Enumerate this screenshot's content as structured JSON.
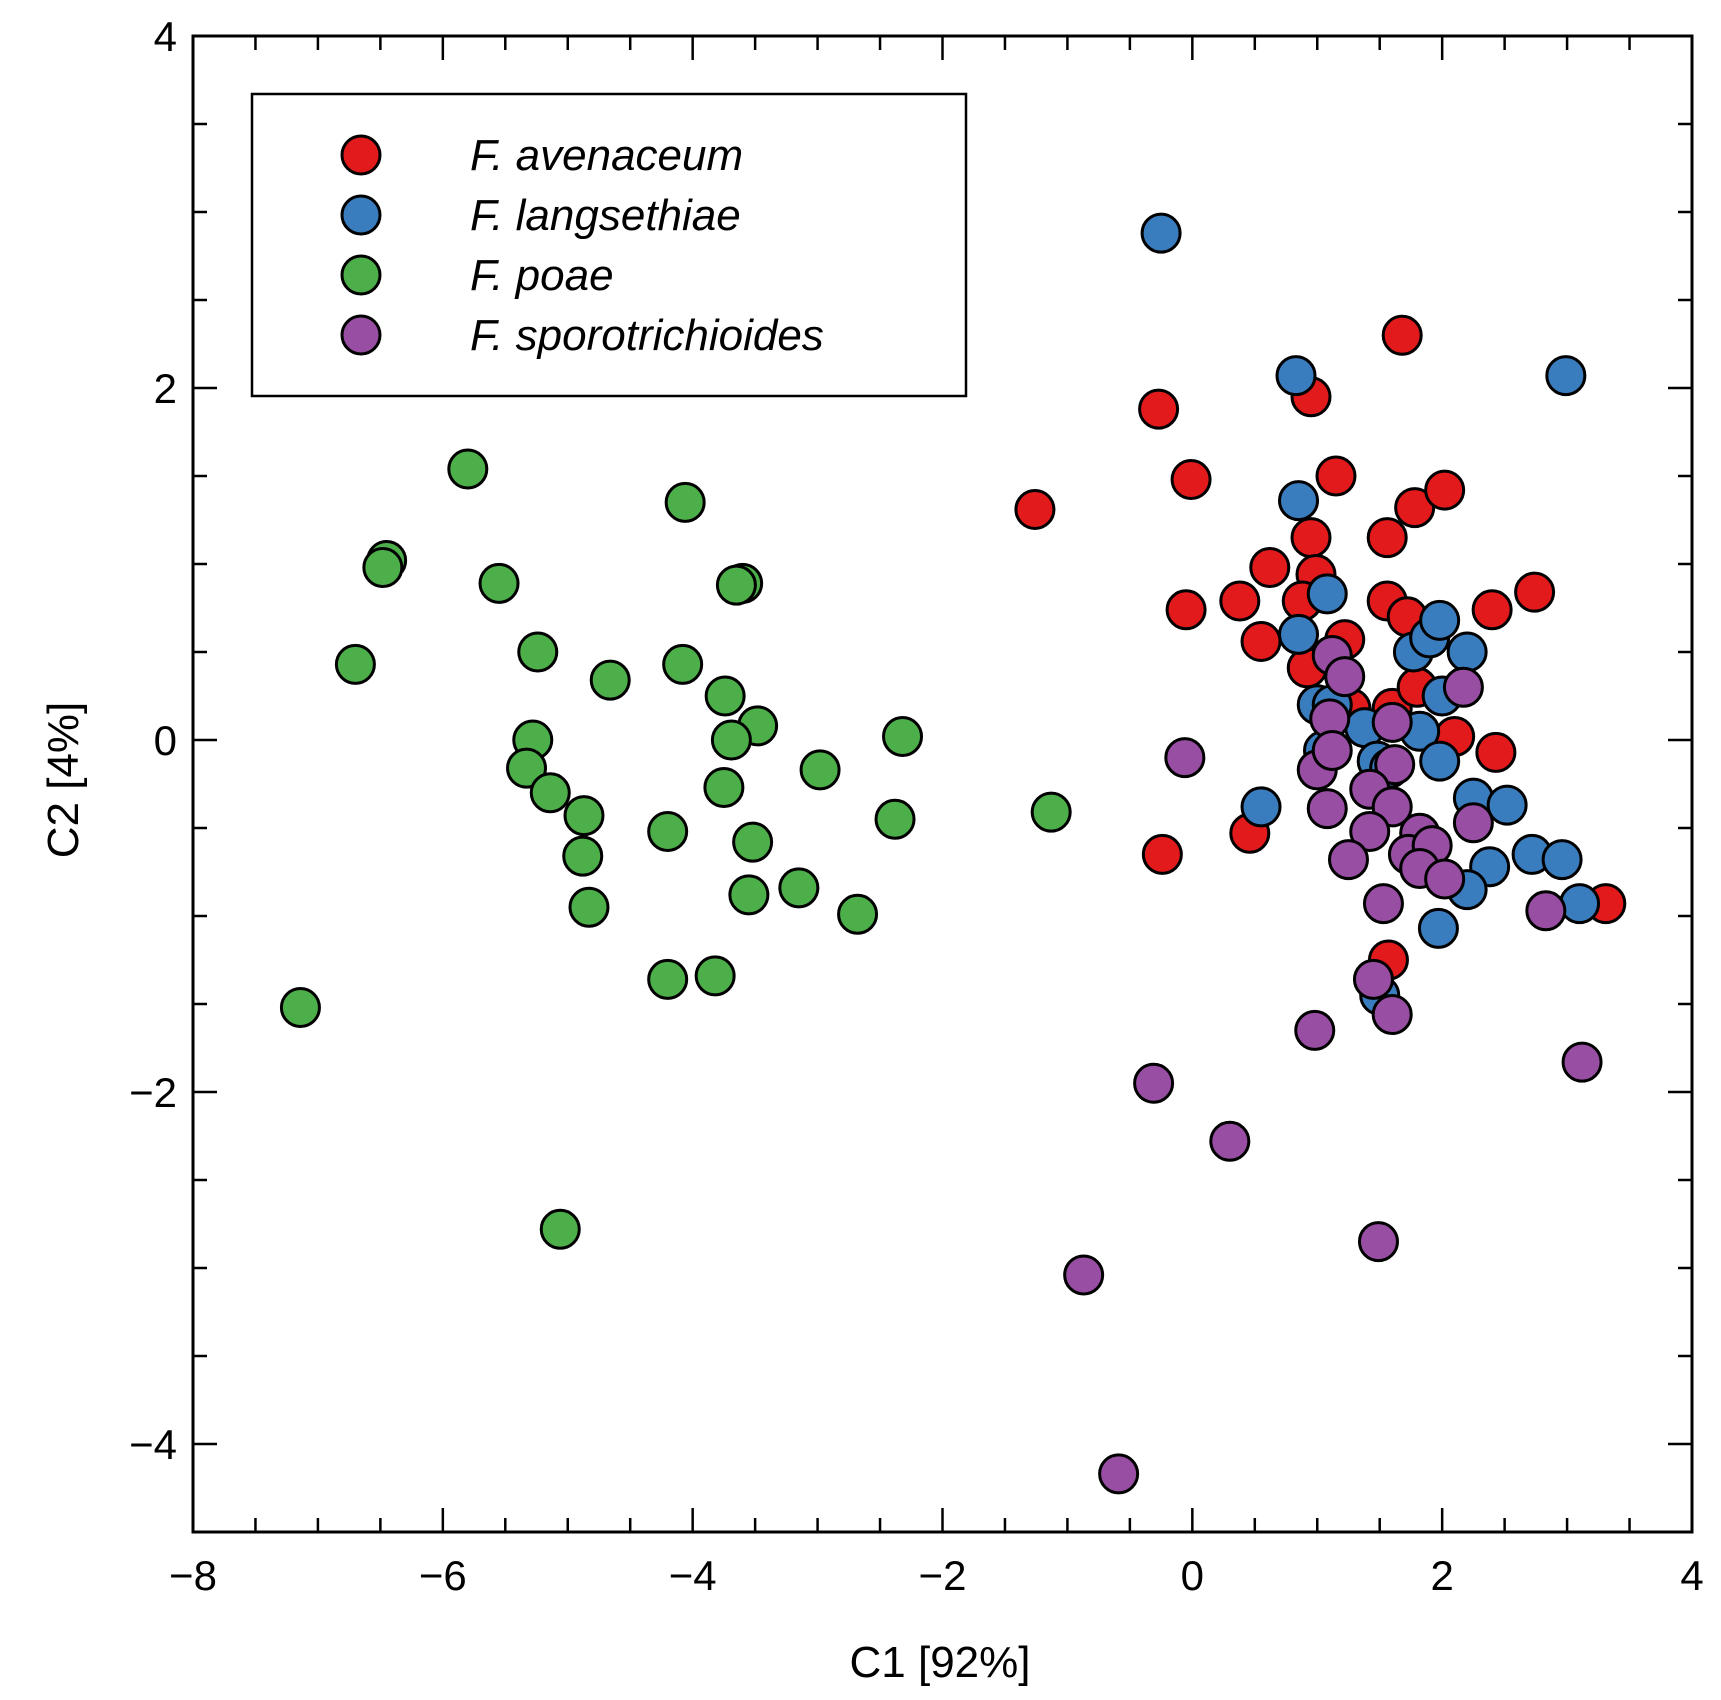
{
  "chart_data": {
    "type": "scatter",
    "title": "",
    "xlabel": "C1 [92%]",
    "ylabel": "C2 [4%]",
    "xlim": [
      -8,
      4
    ],
    "ylim": [
      -4.5,
      4
    ],
    "xticks": [
      -8,
      -6,
      -4,
      -2,
      0,
      2,
      4
    ],
    "xtick_labels": [
      "−8",
      "−6",
      "−4",
      "−2",
      "0",
      "2",
      "4"
    ],
    "yticks": [
      -4,
      -2,
      0,
      2,
      4
    ],
    "ytick_labels": [
      "−4",
      "−2",
      "0",
      "2",
      "4"
    ],
    "legend_position": "top-left",
    "series": [
      {
        "name": "F. avenaceum",
        "color": "#e31a1c",
        "points": [
          [
            1.68,
            2.3
          ],
          [
            -0.27,
            1.88
          ],
          [
            0.95,
            1.95
          ],
          [
            -0.01,
            1.48
          ],
          [
            -1.26,
            1.31
          ],
          [
            1.15,
            1.5
          ],
          [
            1.78,
            1.32
          ],
          [
            2.02,
            1.42
          ],
          [
            0.95,
            1.15
          ],
          [
            1.56,
            1.15
          ],
          [
            2.74,
            0.84
          ],
          [
            0.62,
            0.98
          ],
          [
            0.99,
            0.94
          ],
          [
            -0.05,
            0.74
          ],
          [
            0.38,
            0.79
          ],
          [
            0.88,
            0.79
          ],
          [
            1.56,
            0.79
          ],
          [
            1.72,
            0.7
          ],
          [
            2.4,
            0.74
          ],
          [
            0.55,
            0.56
          ],
          [
            1.22,
            0.57
          ],
          [
            0.92,
            0.41
          ],
          [
            1.27,
            0.18
          ],
          [
            1.6,
            0.18
          ],
          [
            1.8,
            0.3
          ],
          [
            2.1,
            0.02
          ],
          [
            2.43,
            -0.07
          ],
          [
            -0.24,
            -0.65
          ],
          [
            0.46,
            -0.53
          ],
          [
            1.57,
            -1.25
          ],
          [
            3.31,
            -0.93
          ]
        ]
      },
      {
        "name": "F. langsethiae",
        "color": "#3a7dbf",
        "points": [
          [
            -0.25,
            2.88
          ],
          [
            0.83,
            2.07
          ],
          [
            2.99,
            2.07
          ],
          [
            0.85,
            1.36
          ],
          [
            1.08,
            0.83
          ],
          [
            0.85,
            0.6
          ],
          [
            1.77,
            0.5
          ],
          [
            1.9,
            0.58
          ],
          [
            1.98,
            0.68
          ],
          [
            2.2,
            0.5
          ],
          [
            1.0,
            0.2
          ],
          [
            1.12,
            0.2
          ],
          [
            2.0,
            0.25
          ],
          [
            1.38,
            0.07
          ],
          [
            1.82,
            0.05
          ],
          [
            1.05,
            -0.06
          ],
          [
            1.48,
            -0.12
          ],
          [
            1.58,
            -0.16
          ],
          [
            1.98,
            -0.12
          ],
          [
            2.25,
            -0.33
          ],
          [
            2.52,
            -0.37
          ],
          [
            0.55,
            -0.38
          ],
          [
            2.72,
            -0.65
          ],
          [
            2.96,
            -0.68
          ],
          [
            2.38,
            -0.72
          ],
          [
            2.2,
            -0.85
          ],
          [
            1.97,
            -1.07
          ],
          [
            3.1,
            -0.93
          ],
          [
            1.5,
            -1.45
          ]
        ]
      },
      {
        "name": "F. poae",
        "color": "#4daf4a",
        "points": [
          [
            -5.8,
            1.54
          ],
          [
            -4.06,
            1.35
          ],
          [
            -6.45,
            1.02
          ],
          [
            -6.48,
            0.98
          ],
          [
            -5.55,
            0.89
          ],
          [
            -3.6,
            0.89
          ],
          [
            -3.65,
            0.88
          ],
          [
            -6.7,
            0.43
          ],
          [
            -5.24,
            0.5
          ],
          [
            -4.66,
            0.34
          ],
          [
            -4.08,
            0.43
          ],
          [
            -3.74,
            0.25
          ],
          [
            -3.48,
            0.08
          ],
          [
            -3.69,
            0.0
          ],
          [
            -5.28,
            0.0
          ],
          [
            -2.32,
            0.02
          ],
          [
            -5.33,
            -0.16
          ],
          [
            -5.14,
            -0.3
          ],
          [
            -4.87,
            -0.43
          ],
          [
            -2.98,
            -0.17
          ],
          [
            -3.75,
            -0.27
          ],
          [
            -1.13,
            -0.41
          ],
          [
            -2.38,
            -0.45
          ],
          [
            -4.2,
            -0.52
          ],
          [
            -3.52,
            -0.58
          ],
          [
            -4.88,
            -0.66
          ],
          [
            -4.83,
            -0.95
          ],
          [
            -3.55,
            -0.88
          ],
          [
            -3.15,
            -0.84
          ],
          [
            -2.68,
            -0.99
          ],
          [
            -4.2,
            -1.36
          ],
          [
            -3.82,
            -1.34
          ],
          [
            -7.14,
            -1.52
          ],
          [
            -5.06,
            -2.78
          ]
        ]
      },
      {
        "name": "F. sporotrichioides",
        "color": "#984ea3",
        "points": [
          [
            1.12,
            0.48
          ],
          [
            1.22,
            0.36
          ],
          [
            2.17,
            0.3
          ],
          [
            1.1,
            0.12
          ],
          [
            1.6,
            0.1
          ],
          [
            -0.06,
            -0.1
          ],
          [
            1.0,
            -0.17
          ],
          [
            1.12,
            -0.06
          ],
          [
            1.62,
            -0.14
          ],
          [
            1.08,
            -0.39
          ],
          [
            1.42,
            -0.28
          ],
          [
            1.6,
            -0.38
          ],
          [
            1.42,
            -0.52
          ],
          [
            1.82,
            -0.53
          ],
          [
            2.25,
            -0.47
          ],
          [
            1.73,
            -0.65
          ],
          [
            1.92,
            -0.6
          ],
          [
            1.25,
            -0.68
          ],
          [
            1.82,
            -0.73
          ],
          [
            2.02,
            -0.79
          ],
          [
            1.53,
            -0.93
          ],
          [
            2.83,
            -0.97
          ],
          [
            1.45,
            -1.36
          ],
          [
            1.6,
            -1.56
          ],
          [
            0.98,
            -1.65
          ],
          [
            3.12,
            -1.83
          ],
          [
            -0.31,
            -1.95
          ],
          [
            0.3,
            -2.28
          ],
          [
            1.49,
            -2.85
          ],
          [
            -0.87,
            -3.04
          ],
          [
            -0.59,
            -4.17
          ]
        ]
      }
    ]
  }
}
